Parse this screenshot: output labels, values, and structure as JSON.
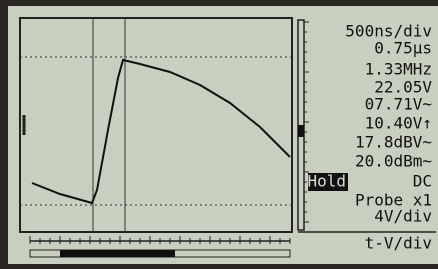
{
  "display": {
    "readouts": [
      "500ns/div",
      "0.75µs",
      "1.33MHz",
      "22.05V",
      "07.71V~",
      "10.40V↑",
      "17.8dBV~",
      "20.0dBm~"
    ],
    "mode": "Hold",
    "coupling": "DC",
    "probe": "Probe x1",
    "volts_per_div": "4V/div",
    "menu": "t-V/div"
  }
}
